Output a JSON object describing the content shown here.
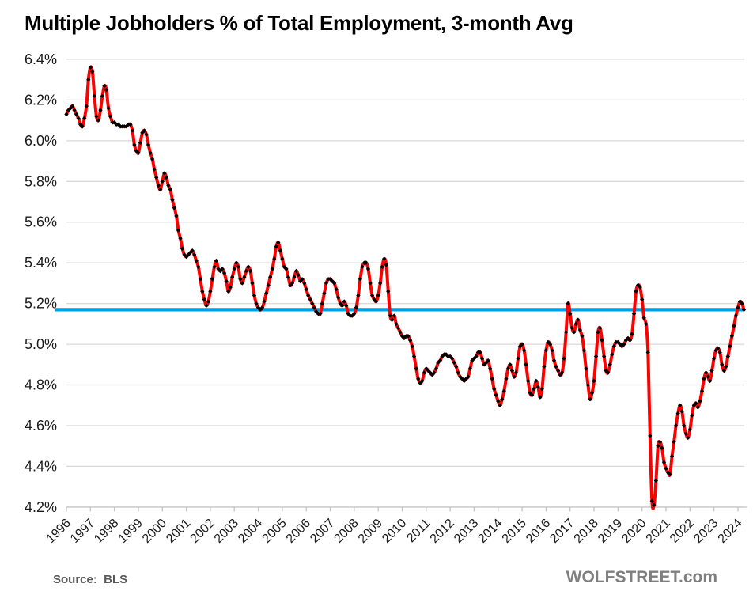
{
  "footer": {
    "source": "Source:  BLS",
    "watermark": "WOLFSTREET.com"
  },
  "chart_data": {
    "type": "line",
    "title": "Multiple Jobholders % of Total Employment, 3-month Avg",
    "xlabel": "",
    "ylabel": "",
    "ylim": [
      4.2,
      6.4
    ],
    "y_tick_step": 0.2,
    "y_tick_suffix": "%",
    "grid": "horizontal",
    "legend": "none",
    "x_ticks": [
      1996,
      1997,
      1998,
      1999,
      2000,
      2001,
      2002,
      2003,
      2004,
      2005,
      2006,
      2007,
      2008,
      2009,
      2010,
      2011,
      2012,
      2013,
      2014,
      2015,
      2016,
      2017,
      2018,
      2019,
      2020,
      2021,
      2022,
      2023,
      2024
    ],
    "avg_line": {
      "value": 5.17,
      "color": "#00a0e0"
    },
    "colors": {
      "line": "#ff0000",
      "marker": "#000000",
      "grid": "#d9d9d9",
      "axis": "#c4c4c4",
      "tick_label": "#1a1a1a"
    },
    "series": [
      {
        "name": "Multiple jobholders as percent of total employment, 3-month average",
        "start_year": 1996,
        "start_month": 1,
        "frequency": "monthly",
        "values": [
          6.13,
          6.15,
          6.16,
          6.17,
          6.15,
          6.13,
          6.11,
          6.08,
          6.07,
          6.11,
          6.17,
          6.3,
          6.36,
          6.34,
          6.22,
          6.12,
          6.1,
          6.15,
          6.22,
          6.27,
          6.25,
          6.16,
          6.12,
          6.09,
          6.09,
          6.08,
          6.08,
          6.07,
          6.07,
          6.07,
          6.07,
          6.08,
          6.08,
          6.05,
          5.98,
          5.95,
          5.94,
          5.99,
          6.04,
          6.05,
          6.03,
          5.98,
          5.94,
          5.91,
          5.86,
          5.82,
          5.78,
          5.76,
          5.8,
          5.84,
          5.82,
          5.78,
          5.76,
          5.71,
          5.67,
          5.63,
          5.56,
          5.52,
          5.47,
          5.44,
          5.43,
          5.44,
          5.45,
          5.46,
          5.44,
          5.41,
          5.38,
          5.32,
          5.26,
          5.22,
          5.19,
          5.21,
          5.26,
          5.32,
          5.38,
          5.41,
          5.37,
          5.36,
          5.37,
          5.35,
          5.31,
          5.26,
          5.28,
          5.33,
          5.37,
          5.4,
          5.38,
          5.32,
          5.3,
          5.33,
          5.36,
          5.38,
          5.36,
          5.3,
          5.24,
          5.2,
          5.18,
          5.17,
          5.18,
          5.21,
          5.25,
          5.29,
          5.33,
          5.37,
          5.42,
          5.48,
          5.5,
          5.46,
          5.42,
          5.38,
          5.37,
          5.33,
          5.29,
          5.3,
          5.33,
          5.36,
          5.34,
          5.31,
          5.32,
          5.3,
          5.27,
          5.24,
          5.22,
          5.2,
          5.18,
          5.16,
          5.15,
          5.15,
          5.2,
          5.25,
          5.3,
          5.32,
          5.32,
          5.31,
          5.3,
          5.27,
          5.23,
          5.2,
          5.19,
          5.21,
          5.19,
          5.15,
          5.14,
          5.14,
          5.15,
          5.18,
          5.24,
          5.32,
          5.38,
          5.4,
          5.4,
          5.37,
          5.3,
          5.24,
          5.22,
          5.21,
          5.24,
          5.3,
          5.38,
          5.42,
          5.39,
          5.26,
          5.14,
          5.12,
          5.14,
          5.1,
          5.08,
          5.06,
          5.04,
          5.03,
          5.04,
          5.04,
          5.02,
          4.99,
          4.94,
          4.88,
          4.83,
          4.81,
          4.82,
          4.86,
          4.88,
          4.87,
          4.86,
          4.85,
          4.86,
          4.88,
          4.91,
          4.92,
          4.94,
          4.95,
          4.95,
          4.94,
          4.94,
          4.93,
          4.91,
          4.89,
          4.86,
          4.84,
          4.83,
          4.82,
          4.83,
          4.84,
          4.88,
          4.92,
          4.93,
          4.94,
          4.96,
          4.96,
          4.93,
          4.9,
          4.91,
          4.92,
          4.88,
          4.83,
          4.78,
          4.75,
          4.72,
          4.7,
          4.73,
          4.77,
          4.83,
          4.88,
          4.9,
          4.87,
          4.84,
          4.86,
          4.93,
          4.99,
          5.0,
          4.97,
          4.9,
          4.82,
          4.76,
          4.75,
          4.78,
          4.82,
          4.79,
          4.74,
          4.78,
          4.89,
          4.97,
          5.01,
          5.0,
          4.97,
          4.92,
          4.89,
          4.87,
          4.85,
          4.86,
          4.93,
          5.06,
          5.2,
          5.15,
          5.08,
          5.06,
          5.1,
          5.12,
          5.07,
          5.04,
          4.97,
          4.88,
          4.8,
          4.73,
          4.76,
          4.82,
          4.94,
          5.06,
          5.08,
          5.02,
          4.94,
          4.87,
          4.86,
          4.9,
          4.95,
          4.99,
          5.01,
          5.01,
          5.0,
          4.99,
          5.0,
          5.02,
          5.03,
          5.02,
          5.05,
          5.15,
          5.26,
          5.29,
          5.28,
          5.22,
          5.13,
          5.1,
          4.96,
          4.55,
          4.23,
          4.21,
          4.33,
          4.5,
          4.52,
          4.49,
          4.42,
          4.39,
          4.37,
          4.36,
          4.45,
          4.52,
          4.6,
          4.66,
          4.7,
          4.67,
          4.6,
          4.56,
          4.54,
          4.58,
          4.65,
          4.7,
          4.71,
          4.69,
          4.72,
          4.77,
          4.83,
          4.86,
          4.84,
          4.82,
          4.87,
          4.93,
          4.97,
          4.98,
          4.96,
          4.9,
          4.87,
          4.89,
          4.94,
          4.99,
          5.04,
          5.09,
          5.14,
          5.18,
          5.21,
          5.2,
          5.17
        ]
      }
    ]
  }
}
